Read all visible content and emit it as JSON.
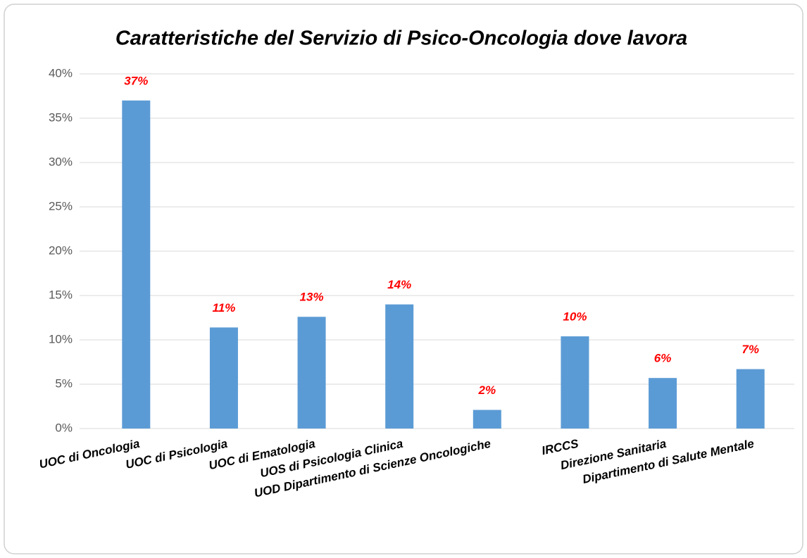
{
  "chart_data": {
    "type": "bar",
    "title": "Caratteristiche del Servizio di Psico-Oncologia dove lavora",
    "categories": [
      "UOC di Oncologia",
      "UOC di Psicologia",
      "UOC di Ematologia",
      "UOS di Psicologia Clinica",
      "UOD Dipartimento di Scienze Oncologiche",
      "IRCCS",
      "Direzione Sanitaria",
      "Dipartimento di Salute Mentale"
    ],
    "values": [
      37,
      11.4,
      12.6,
      14,
      2.1,
      10.4,
      5.7,
      6.7
    ],
    "value_labels": [
      "37%",
      "11%",
      "13%",
      "14%",
      "2%",
      "10%",
      "6%",
      "7%"
    ],
    "color": "#5b9bd5",
    "label_color": "#ff0000",
    "ylim": [
      0,
      40
    ],
    "yticks": [
      {
        "value": 0,
        "label": "0%"
      },
      {
        "value": 5,
        "label": "5%"
      },
      {
        "value": 10,
        "label": "10%"
      },
      {
        "value": 15,
        "label": "15%"
      },
      {
        "value": 20,
        "label": "20%"
      },
      {
        "value": 25,
        "label": "25%"
      },
      {
        "value": 30,
        "label": "30%"
      },
      {
        "value": 35,
        "label": "35%"
      },
      {
        "value": 40,
        "label": "40%"
      }
    ],
    "grid": true
  }
}
